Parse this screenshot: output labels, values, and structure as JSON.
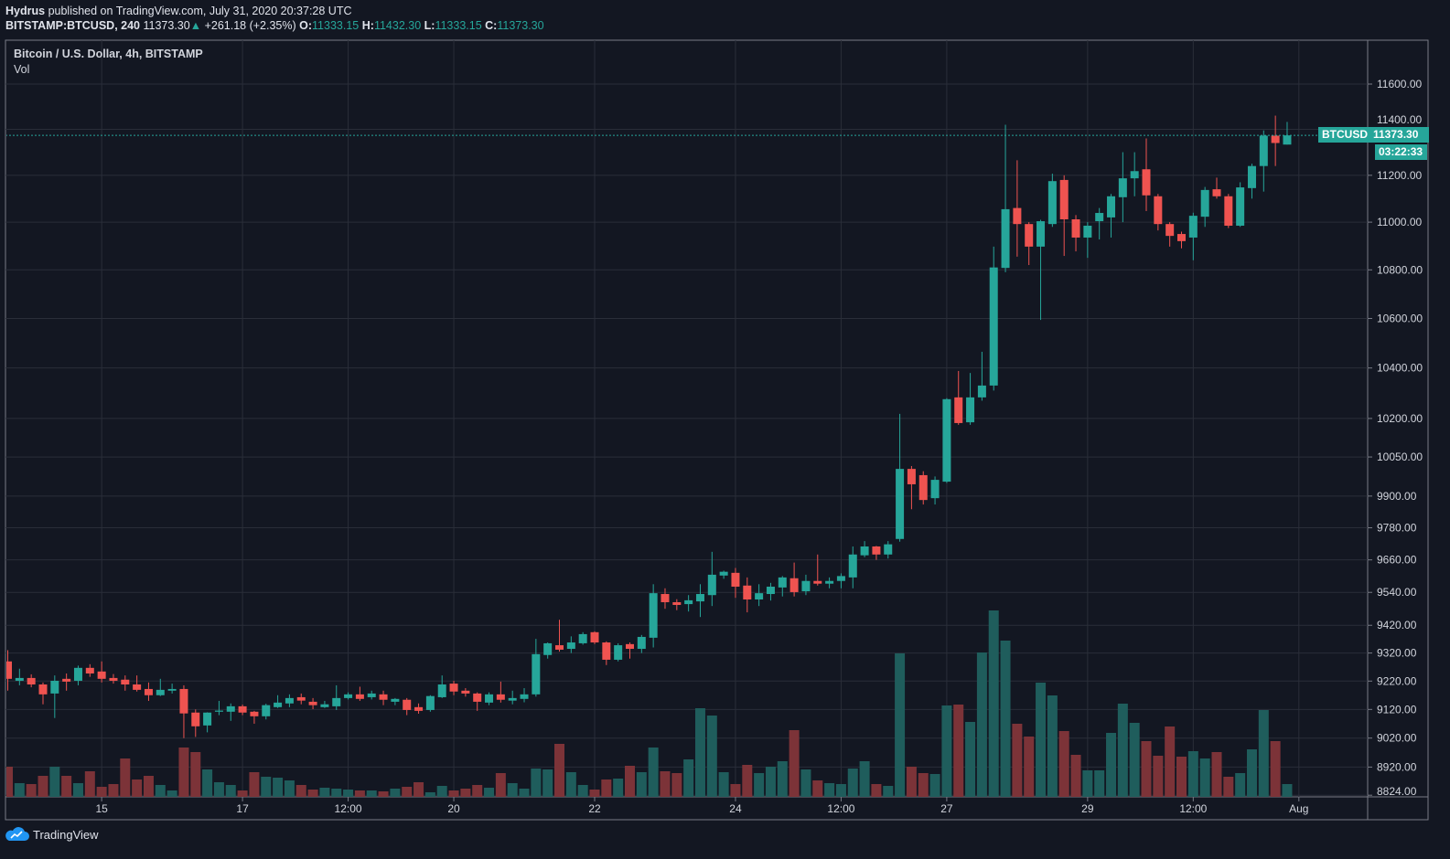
{
  "header": {
    "author": "Hydrus",
    "published_text": "published on TradingView.com, July 31, 2020 20:37:28 UTC",
    "symbol_interval": "BITSTAMP:BTCUSD, 240",
    "last_price": "11373.30",
    "change": "+261.18 (+2.35%)",
    "o_label": "O:",
    "o_value": "11333.15",
    "h_label": "H:",
    "h_value": "11432.30",
    "l_label": "L:",
    "l_value": "11333.15",
    "c_label": "C:",
    "c_value": "11373.30"
  },
  "legend": {
    "title": "Bitcoin / U.S. Dollar, 4h, BITSTAMP",
    "volume": "Vol"
  },
  "price_label": {
    "symbol": "BTCUSD",
    "price": "11373.30",
    "countdown": "03:22:33"
  },
  "branding": {
    "logo_text": "TradingView"
  },
  "colors": {
    "up": "#26a69a",
    "down": "#ef5350",
    "vol_up": "#1f5d5c",
    "vol_down": "#7c3338",
    "background": "#131722",
    "grid": "#2a2e39"
  },
  "chart_data": {
    "type": "candlestick",
    "title": "Bitcoin / U.S. Dollar, 4h, BITSTAMP",
    "scale": "log",
    "ylim": [
      8824,
      11700
    ],
    "y_ticks": [
      "11600.00",
      "11400.00",
      "11200.00",
      "11000.00",
      "10800.00",
      "10600.00",
      "10400.00",
      "10200.00",
      "10050.00",
      "9900.00",
      "9780.00",
      "9660.00",
      "9540.00",
      "9420.00",
      "9320.00",
      "9220.00",
      "9120.00",
      "9020.00",
      "8920.00",
      "8824.00"
    ],
    "x_ticks": [
      {
        "label": "15",
        "index": 8
      },
      {
        "label": "17",
        "index": 20
      },
      {
        "label": "12:00",
        "index": 29
      },
      {
        "label": "20",
        "index": 38
      },
      {
        "label": "22",
        "index": 50
      },
      {
        "label": "24",
        "index": 62
      },
      {
        "label": "12:00",
        "index": 71
      },
      {
        "label": "27",
        "index": 80
      },
      {
        "label": "29",
        "index": 92
      },
      {
        "label": "12:00",
        "index": 101
      },
      {
        "label": "Aug",
        "index": 110
      }
    ],
    "ohlc_fields": [
      "open",
      "high",
      "low",
      "close"
    ],
    "candles": [
      [
        9290,
        9330,
        9186,
        9228
      ],
      [
        9221,
        9264,
        9205,
        9231
      ],
      [
        9231,
        9244,
        9198,
        9208
      ],
      [
        9208,
        9215,
        9138,
        9173
      ],
      [
        9176,
        9240,
        9090,
        9221
      ],
      [
        9228,
        9247,
        9186,
        9218
      ],
      [
        9221,
        9275,
        9205,
        9267
      ],
      [
        9267,
        9280,
        9235,
        9247
      ],
      [
        9254,
        9290,
        9215,
        9228
      ],
      [
        9231,
        9245,
        9211,
        9221
      ],
      [
        9225,
        9240,
        9186,
        9208
      ],
      [
        9208,
        9240,
        9183,
        9189
      ],
      [
        9192,
        9215,
        9150,
        9170
      ],
      [
        9170,
        9228,
        9167,
        9189
      ],
      [
        9186,
        9211,
        9176,
        9192
      ],
      [
        9192,
        9205,
        9020,
        9106
      ],
      [
        9109,
        9120,
        9024,
        9061
      ],
      [
        9064,
        9110,
        9040,
        9109
      ],
      [
        9112,
        9150,
        9100,
        9116
      ],
      [
        9112,
        9141,
        9080,
        9131
      ],
      [
        9131,
        9137,
        9100,
        9109
      ],
      [
        9112,
        9115,
        9070,
        9096
      ],
      [
        9096,
        9140,
        9085,
        9135
      ],
      [
        9128,
        9170,
        9125,
        9144
      ],
      [
        9141,
        9173,
        9128,
        9160
      ],
      [
        9163,
        9176,
        9138,
        9151
      ],
      [
        9147,
        9160,
        9121,
        9135
      ],
      [
        9128,
        9150,
        9125,
        9138
      ],
      [
        9131,
        9205,
        9118,
        9160
      ],
      [
        9160,
        9180,
        9155,
        9173
      ],
      [
        9173,
        9200,
        9150,
        9157
      ],
      [
        9163,
        9186,
        9155,
        9176
      ],
      [
        9173,
        9186,
        9135,
        9154
      ],
      [
        9147,
        9160,
        9135,
        9157
      ],
      [
        9154,
        9160,
        9100,
        9118
      ],
      [
        9128,
        9141,
        9105,
        9115
      ],
      [
        9118,
        9170,
        9112,
        9167
      ],
      [
        9163,
        9240,
        9160,
        9208
      ],
      [
        9211,
        9221,
        9170,
        9183
      ],
      [
        9186,
        9195,
        9165,
        9176
      ],
      [
        9176,
        9180,
        9115,
        9147
      ],
      [
        9144,
        9180,
        9135,
        9173
      ],
      [
        9173,
        9218,
        9144,
        9154
      ],
      [
        9151,
        9186,
        9138,
        9160
      ],
      [
        9157,
        9195,
        9145,
        9173
      ],
      [
        9173,
        9371,
        9165,
        9316
      ],
      [
        9313,
        9358,
        9300,
        9355
      ],
      [
        9348,
        9440,
        9325,
        9332
      ],
      [
        9335,
        9380,
        9320,
        9358
      ],
      [
        9355,
        9395,
        9350,
        9388
      ],
      [
        9395,
        9398,
        9352,
        9358
      ],
      [
        9358,
        9362,
        9277,
        9296
      ],
      [
        9296,
        9355,
        9290,
        9348
      ],
      [
        9352,
        9358,
        9300,
        9335
      ],
      [
        9335,
        9385,
        9320,
        9378
      ],
      [
        9375,
        9570,
        9340,
        9537
      ],
      [
        9534,
        9555,
        9480,
        9504
      ],
      [
        9504,
        9515,
        9475,
        9494
      ],
      [
        9497,
        9530,
        9470,
        9511
      ],
      [
        9507,
        9570,
        9450,
        9534
      ],
      [
        9530,
        9690,
        9490,
        9605
      ],
      [
        9602,
        9620,
        9590,
        9616
      ],
      [
        9612,
        9630,
        9520,
        9561
      ],
      [
        9565,
        9595,
        9467,
        9514
      ],
      [
        9514,
        9570,
        9490,
        9537
      ],
      [
        9534,
        9575,
        9510,
        9561
      ],
      [
        9558,
        9600,
        9525,
        9595
      ],
      [
        9592,
        9650,
        9525,
        9541
      ],
      [
        9544,
        9605,
        9530,
        9582
      ],
      [
        9582,
        9680,
        9565,
        9572
      ],
      [
        9572,
        9595,
        9555,
        9582
      ],
      [
        9582,
        9610,
        9555,
        9600
      ],
      [
        9595,
        9710,
        9555,
        9680
      ],
      [
        9677,
        9730,
        9670,
        9710
      ],
      [
        9710,
        9712,
        9660,
        9680
      ],
      [
        9680,
        9730,
        9665,
        9718
      ],
      [
        9738,
        10218,
        9728,
        10004
      ],
      [
        10004,
        10015,
        9850,
        9945
      ],
      [
        9980,
        9995,
        9868,
        9885
      ],
      [
        9892,
        9975,
        9868,
        9962
      ],
      [
        9955,
        10280,
        9950,
        10276
      ],
      [
        10283,
        10388,
        10175,
        10182
      ],
      [
        10185,
        10380,
        10175,
        10283
      ],
      [
        10283,
        10465,
        10270,
        10330
      ],
      [
        10330,
        10897,
        10310,
        10810
      ],
      [
        10808,
        11420,
        10790,
        11055
      ],
      [
        11060,
        11265,
        10855,
        10992
      ],
      [
        10992,
        11000,
        10820,
        10897
      ],
      [
        10897,
        11010,
        10594,
        11004
      ],
      [
        10992,
        11207,
        10980,
        11175
      ],
      [
        11180,
        11200,
        10858,
        11012
      ],
      [
        11012,
        11030,
        10877,
        10935
      ],
      [
        10935,
        11000,
        10850,
        10985
      ],
      [
        11004,
        11060,
        10927,
        11039
      ],
      [
        11020,
        11120,
        10935,
        11110
      ],
      [
        11106,
        11300,
        11000,
        11187
      ],
      [
        11187,
        11300,
        11110,
        11218
      ],
      [
        11226,
        11360,
        11047,
        11114
      ],
      [
        11110,
        11120,
        10965,
        10992
      ],
      [
        10992,
        11000,
        10897,
        10942
      ],
      [
        10950,
        10960,
        10890,
        10920
      ],
      [
        10935,
        11040,
        10840,
        11027
      ],
      [
        11023,
        11150,
        10980,
        11137
      ],
      [
        11140,
        11190,
        11100,
        11110
      ],
      [
        11110,
        11120,
        10975,
        10985
      ],
      [
        10985,
        11170,
        10980,
        11148
      ],
      [
        11145,
        11250,
        11100,
        11240
      ],
      [
        11240,
        11395,
        11130,
        11372
      ],
      [
        11372,
        11460,
        11240,
        11340
      ],
      [
        11333.15,
        11432.3,
        11333.15,
        11373.3
      ]
    ],
    "volume_relative": [
      33,
      15,
      14,
      23,
      33,
      23,
      15,
      28,
      11,
      14,
      42,
      19,
      23,
      13,
      7,
      54,
      49,
      30,
      16,
      13,
      7,
      27,
      22,
      21,
      18,
      13,
      8,
      10,
      9,
      8,
      7,
      7,
      6,
      9,
      11,
      16,
      5,
      12,
      7,
      9,
      13,
      10,
      26,
      15,
      9,
      31,
      30,
      58,
      27,
      13,
      8,
      19,
      20,
      34,
      27,
      54,
      28,
      26,
      41,
      97,
      89,
      27,
      14,
      35,
      26,
      33,
      39,
      73,
      30,
      18,
      15,
      14,
      31,
      39,
      14,
      12,
      157,
      33,
      26,
      25,
      100,
      101,
      82,
      158,
      204,
      171,
      80,
      66,
      125,
      111,
      72,
      46,
      29,
      29,
      70,
      102,
      81,
      61,
      45,
      77,
      44,
      50,
      42,
      49,
      22,
      26,
      52,
      95,
      61,
      14
    ],
    "last_price_line": 11373.3
  }
}
